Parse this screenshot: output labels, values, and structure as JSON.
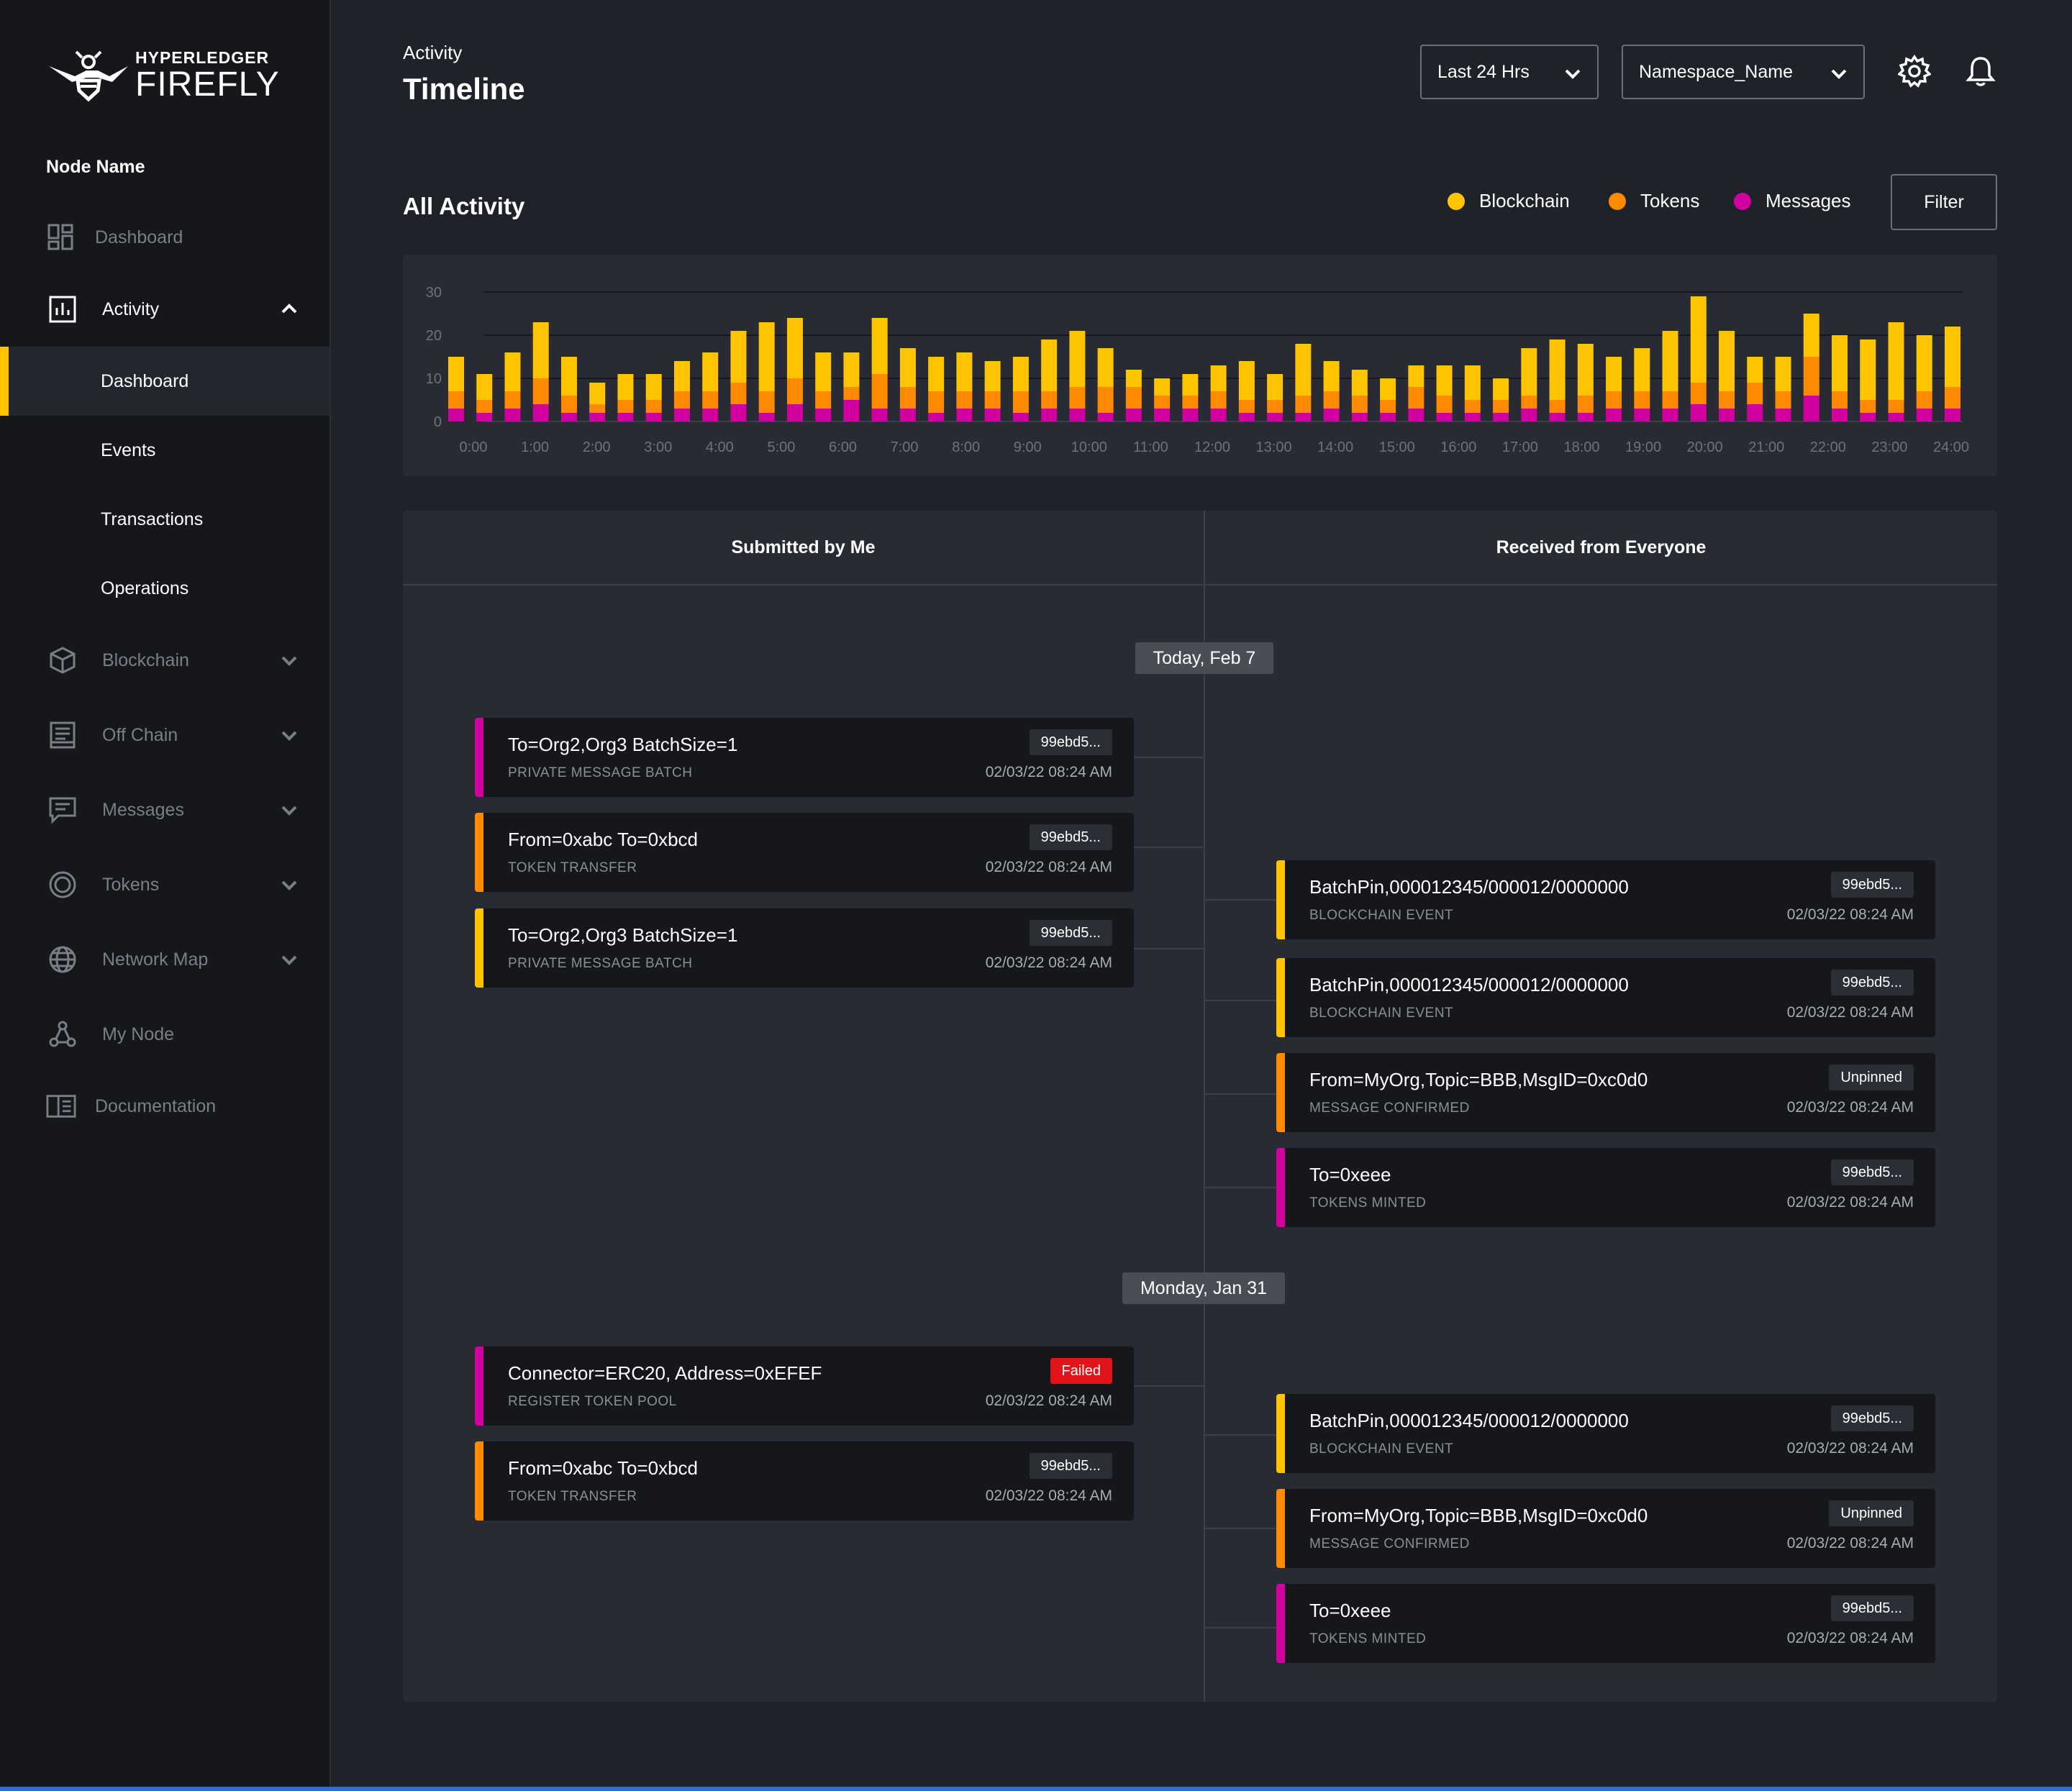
{
  "brand": {
    "top": "HYPERLEDGER",
    "bottom": "FIREFLY"
  },
  "sidebar": {
    "node_name": "Node Name",
    "items": [
      {
        "label": "Dashboard",
        "icon": "dashboard-icon"
      },
      {
        "label": "Activity",
        "icon": "bar-chart-icon",
        "expanded": true,
        "children": [
          "Dashboard",
          "Events",
          "Transactions",
          "Operations"
        ],
        "active_child": "Dashboard"
      },
      {
        "label": "Blockchain",
        "icon": "cube-icon"
      },
      {
        "label": "Off Chain",
        "icon": "document-icon"
      },
      {
        "label": "Messages",
        "icon": "chat-icon"
      },
      {
        "label": "Tokens",
        "icon": "token-icon"
      },
      {
        "label": "Network Map",
        "icon": "globe-icon"
      },
      {
        "label": "My Node",
        "icon": "node-icon"
      },
      {
        "label": "Documentation",
        "icon": "book-icon"
      }
    ]
  },
  "header": {
    "breadcrumb": "Activity",
    "title": "Timeline",
    "time_range": "Last 24 Hrs",
    "namespace": "Namespace_Name",
    "icons": [
      "gear-icon",
      "bell-icon"
    ]
  },
  "activity": {
    "title": "All Activity",
    "filter_label": "Filter",
    "legend": [
      {
        "label": "Blockchain",
        "color": "#ffc400"
      },
      {
        "label": "Tokens",
        "color": "#ff8a00"
      },
      {
        "label": "Messages",
        "color": "#d1009f"
      }
    ]
  },
  "chart_data": {
    "type": "bar",
    "stacked": true,
    "y_ticks": [
      "0",
      "10",
      "20",
      "30"
    ],
    "ylim": [
      0,
      30
    ],
    "x_ticks": [
      "0:00",
      "1:00",
      "2:00",
      "3:00",
      "4:00",
      "5:00",
      "6:00",
      "7:00",
      "8:00",
      "9:00",
      "10:00",
      "11:00",
      "12:00",
      "13:00",
      "14:00",
      "15:00",
      "16:00",
      "17:00",
      "18:00",
      "19:00",
      "20:00",
      "21:00",
      "22:00",
      "23:00",
      "24:00"
    ],
    "series": [
      {
        "name": "Messages",
        "color": "#d1009f",
        "values": [
          3,
          2,
          3,
          4,
          2,
          2,
          2,
          2,
          3,
          3,
          4,
          2,
          4,
          3,
          5,
          3,
          3,
          2,
          3,
          3,
          2,
          3,
          3,
          2,
          3,
          3,
          3,
          3,
          2,
          2,
          2,
          3,
          2,
          2,
          3,
          2,
          2,
          2,
          3,
          2,
          2,
          3,
          3,
          3,
          4,
          3,
          4,
          3,
          6,
          3,
          2,
          2,
          3,
          3
        ]
      },
      {
        "name": "Tokens",
        "color": "#ff8a00",
        "values": [
          4,
          3,
          4,
          6,
          4,
          2,
          3,
          3,
          4,
          4,
          5,
          5,
          6,
          4,
          3,
          8,
          5,
          5,
          4,
          4,
          5,
          4,
          5,
          6,
          5,
          3,
          3,
          4,
          3,
          3,
          4,
          4,
          4,
          3,
          5,
          4,
          3,
          3,
          3,
          3,
          4,
          4,
          4,
          4,
          5,
          4,
          5,
          4,
          9,
          4,
          3,
          3,
          4,
          5
        ]
      },
      {
        "name": "Blockchain",
        "color": "#ffc400",
        "values": [
          8,
          6,
          9,
          13,
          9,
          5,
          6,
          6,
          7,
          9,
          12,
          16,
          14,
          9,
          8,
          13,
          9,
          8,
          9,
          7,
          8,
          12,
          13,
          9,
          4,
          4,
          5,
          6,
          9,
          6,
          12,
          7,
          6,
          5,
          5,
          7,
          8,
          5,
          11,
          14,
          12,
          8,
          10,
          14,
          20,
          14,
          6,
          8,
          10,
          13,
          14,
          18,
          13,
          14
        ]
      }
    ]
  },
  "timeline": {
    "col_left": "Submitted by Me",
    "col_right": "Received from Everyone",
    "groups": [
      {
        "date": "Today, Feb 7",
        "left": [
          {
            "title": "To=Org2,Org3 BatchSize=1",
            "type": "PRIVATE MESSAGE BATCH",
            "badge": "99ebd5...",
            "time": "02/03/22 08:24 AM",
            "color": "#d1009f"
          },
          {
            "title": "From=0xabc To=0xbcd",
            "type": "TOKEN TRANSFER",
            "badge": "99ebd5...",
            "time": "02/03/22 08:24 AM",
            "color": "#ff8a00"
          },
          {
            "title": "To=Org2,Org3 BatchSize=1",
            "type": "PRIVATE MESSAGE BATCH",
            "badge": "99ebd5...",
            "time": "02/03/22 08:24 AM",
            "color": "#ffc400"
          }
        ],
        "right": [
          {
            "title": "BatchPin,000012345/000012/0000000",
            "type": "BLOCKCHAIN EVENT",
            "badge": "99ebd5...",
            "time": "02/03/22 08:24 AM",
            "color": "#ffc400"
          },
          {
            "title": "BatchPin,000012345/000012/0000000",
            "type": "BLOCKCHAIN EVENT",
            "badge": "99ebd5...",
            "time": "02/03/22 08:24 AM",
            "color": "#ffc400"
          },
          {
            "title": "From=MyOrg,Topic=BBB,MsgID=0xc0d0",
            "type": "MESSAGE CONFIRMED",
            "badge": "Unpinned",
            "time": "02/03/22 08:24 AM",
            "color": "#ff8a00"
          },
          {
            "title": "To=0xeee",
            "type": "TOKENS MINTED",
            "badge": "99ebd5...",
            "time": "02/03/22 08:24 AM",
            "color": "#d1009f"
          }
        ]
      },
      {
        "date": "Monday, Jan 31",
        "left": [
          {
            "title": "Connector=ERC20, Address=0xEFEF",
            "type": "REGISTER TOKEN POOL",
            "badge": "Failed",
            "time": "02/03/22 08:24 AM",
            "color": "#d1009f"
          },
          {
            "title": "From=0xabc To=0xbcd",
            "type": "TOKEN TRANSFER",
            "badge": "99ebd5...",
            "time": "02/03/22 08:24 AM",
            "color": "#ff8a00"
          }
        ],
        "right": [
          {
            "title": "BatchPin,000012345/000012/0000000",
            "type": "BLOCKCHAIN EVENT",
            "badge": "99ebd5...",
            "time": "02/03/22 08:24 AM",
            "color": "#ffc400"
          },
          {
            "title": "From=MyOrg,Topic=BBB,MsgID=0xc0d0",
            "type": "MESSAGE CONFIRMED",
            "badge": "Unpinned",
            "time": "02/03/22 08:24 AM",
            "color": "#ff8a00"
          },
          {
            "title": "To=0xeee",
            "type": "TOKENS MINTED",
            "badge": "99ebd5...",
            "time": "02/03/22 08:24 AM",
            "color": "#d1009f"
          }
        ]
      }
    ]
  }
}
